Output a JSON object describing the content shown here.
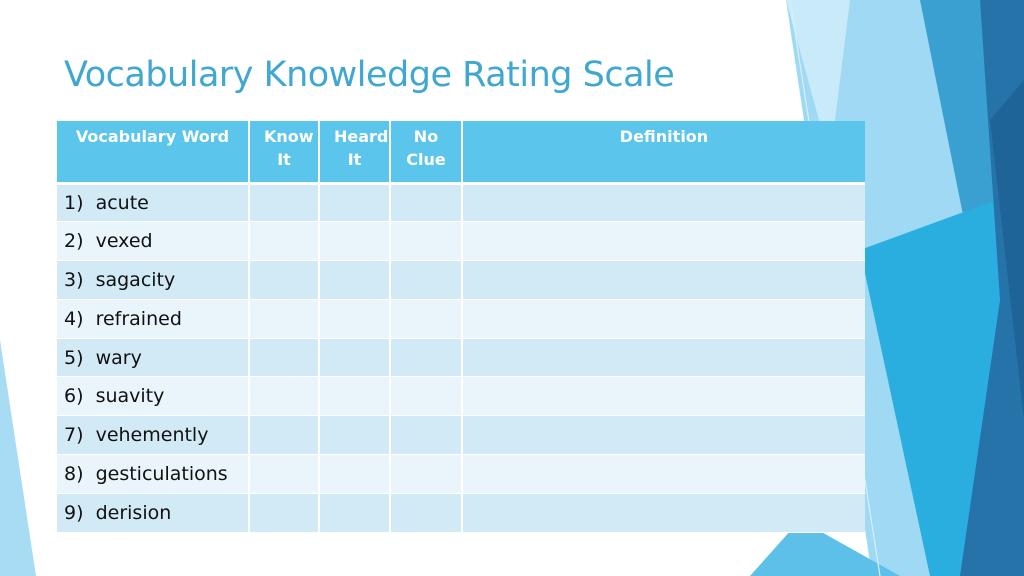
{
  "slide": {
    "title": "Vocabulary Knowledge Rating Scale"
  },
  "table": {
    "headers": [
      "Vocabulary Word",
      "Know It",
      "Heard It",
      "No Clue",
      "Definition"
    ],
    "rows": [
      [
        "1)  acute",
        "",
        "",
        "",
        ""
      ],
      [
        "2)  vexed",
        "",
        "",
        "",
        ""
      ],
      [
        "3)  sagacity",
        "",
        "",
        "",
        ""
      ],
      [
        "4)  refrained",
        "",
        "",
        "",
        ""
      ],
      [
        "5)  wary",
        "",
        "",
        "",
        ""
      ],
      [
        "6)  suavity",
        "",
        "",
        "",
        ""
      ],
      [
        "7)  vehemently",
        "",
        "",
        "",
        ""
      ],
      [
        "8)  gesticulations",
        "",
        "",
        "",
        ""
      ],
      [
        "9)  derision",
        "",
        "",
        "",
        ""
      ]
    ]
  },
  "colors": {
    "title": "#3fa7d0",
    "header_bg": "#5bc5ec",
    "row_odd": "#d2e9f6",
    "row_even": "#e9f4fb",
    "accent_light": "#8fd4f0",
    "accent_mid": "#29a9de",
    "accent_dark": "#2273a8"
  }
}
